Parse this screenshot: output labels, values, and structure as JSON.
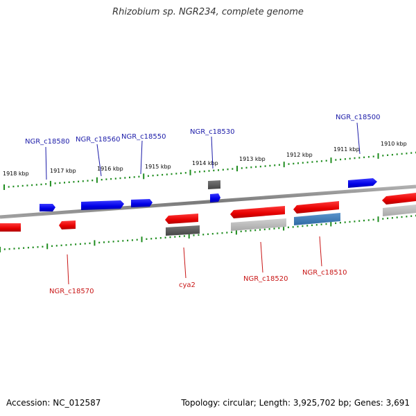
{
  "title": "Rhizobium sp. NGR234, complete genome",
  "footer": {
    "accession": "Accession: NC_012587",
    "summary": "Topology: circular; Length: 3,925,702 bp; Genes: 3,691"
  },
  "colors": {
    "forward_gene": "#0000ee",
    "reverse_gene": "#ee0000",
    "forward_label": "#1a1aa8",
    "reverse_label": "#c81414",
    "backbone": "#8c8c8c",
    "tick": "#1e8c1e",
    "rna_dark": "#555555",
    "rna_light": "#b4b4b4",
    "rna_blue": "#3c78b4"
  },
  "scale_labels": [
    "1918 kbp",
    "1917 kbp",
    "1916 kbp",
    "1915 kbp",
    "1914 kbp",
    "1913 kbp",
    "1912 kbp",
    "1911 kbp",
    "1910 kbp"
  ],
  "forward_gene_labels": [
    "NGR_c18580",
    "NGR_c18560",
    "NGR_c18550",
    "NGR_c18530",
    "NGR_c18500"
  ],
  "reverse_gene_labels": [
    "NGR_c18570",
    "cya2",
    "NGR_c18520",
    "NGR_c18510"
  ]
}
